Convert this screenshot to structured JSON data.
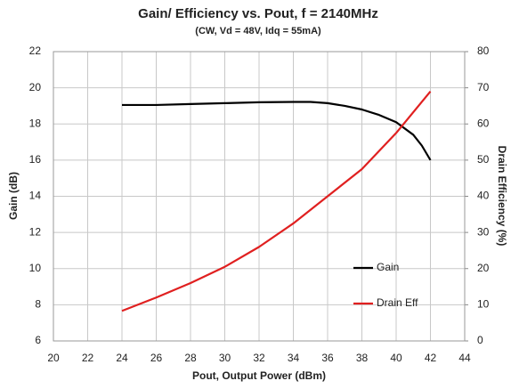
{
  "chart_data": {
    "type": "line",
    "title": "Gain/ Efficiency vs. Pout, f = 2140MHz",
    "subtitle": "(CW, Vd = 48V, Idq = 55mA)",
    "x_label": "Pout, Output Power (dBm)",
    "y_label": "Gain (dB)",
    "y2_label": "Drain Efficiency (%)",
    "xlim": [
      20,
      44
    ],
    "xticks": [
      20,
      22,
      24,
      26,
      28,
      30,
      32,
      34,
      36,
      38,
      40,
      42,
      44
    ],
    "ylim": [
      6,
      22
    ],
    "yticks": [
      6,
      8,
      10,
      12,
      14,
      16,
      18,
      20,
      22
    ],
    "y2lim": [
      0,
      80
    ],
    "y2ticks": [
      0,
      10,
      20,
      30,
      40,
      50,
      60,
      70,
      80
    ],
    "grid": true,
    "legend": "lower right",
    "series": [
      {
        "name": "Gain",
        "color": "#000000",
        "x": [
          24,
          26,
          28,
          30,
          32,
          34,
          35,
          36,
          37,
          38,
          39,
          40,
          41,
          41.5,
          42
        ],
        "values": [
          19.05,
          19.05,
          19.1,
          19.15,
          19.2,
          19.22,
          19.22,
          19.15,
          19.0,
          18.8,
          18.5,
          18.1,
          17.4,
          16.8,
          16.0
        ]
      },
      {
        "name": "Drain Eff",
        "color": "#e02020",
        "axis": "y2",
        "x": [
          24,
          26,
          28,
          30,
          32,
          34,
          36,
          38,
          40,
          42
        ],
        "values": [
          8.3,
          12,
          16,
          20.5,
          26,
          32.5,
          40,
          47.5,
          57.5,
          69
        ]
      }
    ]
  }
}
